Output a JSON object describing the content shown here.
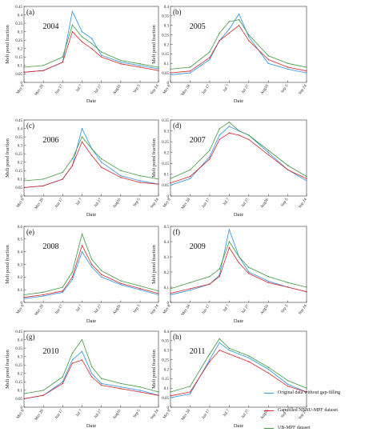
{
  "chart_data": [
    {
      "type": "line",
      "panel_label": "(a)",
      "year_label": "2004",
      "xlabel": "Date",
      "ylabel": "Melt pond fraction",
      "x_ticks": [
        "May 8",
        "May 28",
        "Jun 17",
        "Jul 7",
        "Jul 27",
        "Aug16",
        "Sep 5",
        "Sep 24"
      ],
      "ylim": [
        0,
        0.45
      ],
      "y_ticks": [
        "0",
        "0.05",
        "0.1",
        "0.15",
        "0.2",
        "0.25",
        "0.3",
        "0.35",
        "0.4",
        "0.45"
      ],
      "series": [
        {
          "name": "Original data without gap-filling",
          "color": "#3c9be6",
          "x": [
            "May 8",
            "May 28",
            "Jun 17",
            "Jun 27",
            "Jul 7",
            "Jul 17",
            "Jul 27",
            "Aug16",
            "Sep 5",
            "Sep 24"
          ],
          "values": [
            0.06,
            0.07,
            0.12,
            0.42,
            0.3,
            0.26,
            0.16,
            0.12,
            0.1,
            0.08
          ]
        },
        {
          "name": "Gap-filled NENU-MPF dataset",
          "color": "#d8262a",
          "x": [
            "May 8",
            "May 28",
            "Jun 17",
            "Jun 27",
            "Jul 7",
            "Jul 17",
            "Jul 27",
            "Aug16",
            "Sep 5",
            "Sep 24"
          ],
          "values": [
            0.06,
            0.07,
            0.12,
            0.3,
            0.24,
            0.2,
            0.15,
            0.11,
            0.09,
            0.07
          ]
        },
        {
          "name": "UB-MPF dataset",
          "color": "#3f9a3f",
          "x": [
            "May 8",
            "May 28",
            "Jun 17",
            "Jun 27",
            "Jul 7",
            "Jul 17",
            "Jul 27",
            "Aug16",
            "Sep 5",
            "Sep 24"
          ],
          "values": [
            0.09,
            0.1,
            0.15,
            0.34,
            0.27,
            0.23,
            0.18,
            0.13,
            0.11,
            0.09
          ]
        }
      ]
    },
    {
      "type": "line",
      "panel_label": "(b)",
      "year_label": "2005",
      "xlabel": "Date",
      "ylabel": "Melt pond fraction",
      "x_ticks": [
        "May 8",
        "May 28",
        "Jun 17",
        "Jul 7",
        "Jul 27",
        "Aug16",
        "Sep 5",
        "Sep 24"
      ],
      "ylim": [
        0,
        0.4
      ],
      "y_ticks": [
        "0",
        "0.05",
        "0.1",
        "0.15",
        "0.2",
        "0.25",
        "0.3",
        "0.35",
        "0.4"
      ],
      "series": [
        {
          "name": "Original data without gap-filling",
          "color": "#3c9be6",
          "x": [
            "May 8",
            "May 28",
            "Jun 17",
            "Jun 27",
            "Jul 7",
            "Jul 17",
            "Jul 27",
            "Aug16",
            "Sep 5",
            "Sep 24"
          ],
          "values": [
            0.04,
            0.05,
            0.12,
            0.22,
            0.28,
            0.36,
            0.24,
            0.1,
            0.07,
            0.05
          ]
        },
        {
          "name": "Gap-filled NENU-MPF dataset",
          "color": "#d8262a",
          "x": [
            "May 8",
            "May 28",
            "Jun 17",
            "Jun 27",
            "Jul 7",
            "Jul 17",
            "Jul 27",
            "Aug16",
            "Sep 5",
            "Sep 24"
          ],
          "values": [
            0.05,
            0.06,
            0.13,
            0.22,
            0.26,
            0.3,
            0.22,
            0.12,
            0.08,
            0.06
          ]
        },
        {
          "name": "UB-MPF dataset",
          "color": "#3f9a3f",
          "x": [
            "May 8",
            "May 28",
            "Jun 17",
            "Jun 27",
            "Jul 7",
            "Jul 17",
            "Jul 27",
            "Aug16",
            "Sep 5",
            "Sep 24"
          ],
          "values": [
            0.07,
            0.08,
            0.16,
            0.26,
            0.32,
            0.33,
            0.25,
            0.14,
            0.1,
            0.08
          ]
        }
      ]
    },
    {
      "type": "line",
      "panel_label": "(c)",
      "year_label": "2006",
      "xlabel": "Date",
      "ylabel": "Melt pond fraction",
      "x_ticks": [
        "May 8",
        "May 28",
        "Jun 17",
        "Jul 7",
        "Jul 27",
        "Aug16",
        "Sep 5",
        "Sep 24"
      ],
      "ylim": [
        0,
        0.45
      ],
      "y_ticks": [
        "0",
        "0.05",
        "0.1",
        "0.15",
        "0.2",
        "0.25",
        "0.3",
        "0.35",
        "0.4",
        "0.45"
      ],
      "series": [
        {
          "name": "Original data without gap-filling",
          "color": "#3c9be6",
          "x": [
            "May 8",
            "May 28",
            "Jun 17",
            "Jun 27",
            "Jul 7",
            "Jul 17",
            "Jul 27",
            "Aug16",
            "Sep 5",
            "Sep 24"
          ],
          "values": [
            0.05,
            0.06,
            0.1,
            0.18,
            0.4,
            0.28,
            0.2,
            0.12,
            0.09,
            0.07
          ]
        },
        {
          "name": "Gap-filled NENU-MPF dataset",
          "color": "#d8262a",
          "x": [
            "May 8",
            "May 28",
            "Jun 17",
            "Jun 27",
            "Jul 7",
            "Jul 17",
            "Jul 27",
            "Aug16",
            "Sep 5",
            "Sep 24"
          ],
          "values": [
            0.05,
            0.06,
            0.1,
            0.18,
            0.32,
            0.24,
            0.17,
            0.11,
            0.08,
            0.07
          ]
        },
        {
          "name": "UB-MPF dataset",
          "color": "#3f9a3f",
          "x": [
            "May 8",
            "May 28",
            "Jun 17",
            "Jun 27",
            "Jul 7",
            "Jul 17",
            "Jul 27",
            "Aug16",
            "Sep 5",
            "Sep 24"
          ],
          "values": [
            0.09,
            0.1,
            0.14,
            0.22,
            0.35,
            0.28,
            0.22,
            0.15,
            0.12,
            0.1
          ]
        }
      ]
    },
    {
      "type": "line",
      "panel_label": "(d)",
      "year_label": "2007",
      "xlabel": "Date",
      "ylabel": "Melt pond fraction",
      "x_ticks": [
        "May 8",
        "May 28",
        "Jun 17",
        "Jul 7",
        "Jul 27",
        "Aug16",
        "Sep 5",
        "Sep 24"
      ],
      "ylim": [
        0,
        0.35
      ],
      "y_ticks": [
        "0",
        "0.05",
        "0.1",
        "0.15",
        "0.2",
        "0.25",
        "0.3",
        "0.35"
      ],
      "series": [
        {
          "name": "Original data without gap-filling",
          "color": "#3c9be6",
          "x": [
            "May 8",
            "May 28",
            "Jun 17",
            "Jun 27",
            "Jul 7",
            "Jul 17",
            "Jul 27",
            "Aug16",
            "Sep 5",
            "Sep 24"
          ],
          "values": [
            0.05,
            0.08,
            0.18,
            0.28,
            0.32,
            0.3,
            0.28,
            0.2,
            0.12,
            0.07
          ]
        },
        {
          "name": "Gap-filled NENU-MPF dataset",
          "color": "#d8262a",
          "x": [
            "May 8",
            "May 28",
            "Jun 17",
            "Jun 27",
            "Jul 7",
            "Jul 17",
            "Jul 27",
            "Aug16",
            "Sep 5",
            "Sep 24"
          ],
          "values": [
            0.06,
            0.09,
            0.17,
            0.26,
            0.29,
            0.28,
            0.26,
            0.19,
            0.12,
            0.08
          ]
        },
        {
          "name": "UB-MPF dataset",
          "color": "#3f9a3f",
          "x": [
            "May 8",
            "May 28",
            "Jun 17",
            "Jun 27",
            "Jul 7",
            "Jul 17",
            "Jul 27",
            "Aug16",
            "Sep 5",
            "Sep 24"
          ],
          "values": [
            0.08,
            0.12,
            0.21,
            0.31,
            0.34,
            0.3,
            0.28,
            0.21,
            0.14,
            0.09
          ]
        }
      ]
    },
    {
      "type": "line",
      "panel_label": "(e)",
      "year_label": "2008",
      "xlabel": "Date",
      "ylabel": "Melt pond fraction",
      "x_ticks": [
        "May 8",
        "May 28",
        "Jun 17",
        "Jul 7",
        "Jul 27",
        "Aug16",
        "Sep 5",
        "Sep 24"
      ],
      "ylim": [
        0,
        0.6
      ],
      "y_ticks": [
        "0",
        "0.1",
        "0.2",
        "0.3",
        "0.4",
        "0.5",
        "0.6"
      ],
      "series": [
        {
          "name": "Original data without gap-filling",
          "color": "#3c9be6",
          "x": [
            "May 8",
            "May 28",
            "Jun 17",
            "Jun 27",
            "Jul 7",
            "Jul 17",
            "Jul 27",
            "Aug16",
            "Sep 5",
            "Sep 24"
          ],
          "values": [
            0.03,
            0.05,
            0.08,
            0.18,
            0.4,
            0.28,
            0.2,
            0.14,
            0.1,
            0.06
          ]
        },
        {
          "name": "Gap-filled NENU-MPF dataset",
          "color": "#d8262a",
          "x": [
            "May 8",
            "May 28",
            "Jun 17",
            "Jun 27",
            "Jul 7",
            "Jul 17",
            "Jul 27",
            "Aug16",
            "Sep 5",
            "Sep 24"
          ],
          "values": [
            0.04,
            0.06,
            0.09,
            0.2,
            0.45,
            0.3,
            0.22,
            0.15,
            0.11,
            0.07
          ]
        },
        {
          "name": "UB-MPF dataset",
          "color": "#3f9a3f",
          "x": [
            "May 8",
            "May 28",
            "Jun 17",
            "Jun 27",
            "Jul 7",
            "Jul 17",
            "Jul 27",
            "Aug16",
            "Sep 5",
            "Sep 24"
          ],
          "values": [
            0.06,
            0.08,
            0.12,
            0.24,
            0.54,
            0.34,
            0.25,
            0.17,
            0.13,
            0.09
          ]
        }
      ]
    },
    {
      "type": "line",
      "panel_label": "(f)",
      "year_label": "2009",
      "xlabel": "Date",
      "ylabel": "Melt pond fraction",
      "x_ticks": [
        "May 8",
        "May 28",
        "Jun 17",
        "Jul 7",
        "Jul 27",
        "Aug16",
        "Sep 5",
        "Sep 24"
      ],
      "ylim": [
        0,
        0.5
      ],
      "y_ticks": [
        "0",
        "0.1",
        "0.2",
        "0.3",
        "0.4",
        "0.5"
      ],
      "series": [
        {
          "name": "Original data without gap-filling",
          "color": "#3c9be6",
          "x": [
            "May 8",
            "May 28",
            "Jun 17",
            "Jun 27",
            "Jul 7",
            "Jul 17",
            "Jul 27",
            "Aug16",
            "Sep 5",
            "Sep 24"
          ],
          "values": [
            0.05,
            0.08,
            0.12,
            0.18,
            0.48,
            0.3,
            0.2,
            0.14,
            0.1,
            0.07
          ]
        },
        {
          "name": "Gap-filled NENU-MPF dataset",
          "color": "#d8262a",
          "x": [
            "May 8",
            "May 28",
            "Jun 17",
            "Jun 27",
            "Jul 7",
            "Jul 17",
            "Jul 27",
            "Aug16",
            "Sep 5",
            "Sep 24"
          ],
          "values": [
            0.06,
            0.09,
            0.12,
            0.17,
            0.36,
            0.26,
            0.19,
            0.13,
            0.1,
            0.07
          ]
        },
        {
          "name": "UB-MPF dataset",
          "color": "#3f9a3f",
          "x": [
            "May 8",
            "May 28",
            "Jun 17",
            "Jun 27",
            "Jul 7",
            "Jul 17",
            "Jul 27",
            "Aug16",
            "Sep 5",
            "Sep 24"
          ],
          "values": [
            0.09,
            0.13,
            0.17,
            0.22,
            0.4,
            0.3,
            0.23,
            0.17,
            0.13,
            0.1
          ]
        }
      ]
    },
    {
      "type": "line",
      "panel_label": "(g)",
      "year_label": "2010",
      "xlabel": "Date",
      "ylabel": "Melt pond fraction",
      "x_ticks": [
        "May 8",
        "May 28",
        "Jun 17",
        "Jul 7",
        "Jul 27",
        "Aug16",
        "Sep 5",
        "Sep 24"
      ],
      "ylim": [
        0,
        0.45
      ],
      "y_ticks": [
        "0",
        "0.05",
        "0.1",
        "0.15",
        "0.2",
        "0.25",
        "0.3",
        "0.35",
        "0.4",
        "0.45"
      ],
      "series": [
        {
          "name": "Original data without gap-filling",
          "color": "#3c9be6",
          "x": [
            "May 8",
            "May 28",
            "Jun 17",
            "Jun 27",
            "Jul 7",
            "Jul 17",
            "Jul 27",
            "Aug16",
            "Sep 5",
            "Sep 24"
          ],
          "values": [
            0.05,
            0.07,
            0.15,
            0.28,
            0.33,
            0.2,
            0.14,
            0.12,
            0.1,
            0.07
          ]
        },
        {
          "name": "Gap-filled NENU-MPF dataset",
          "color": "#d8262a",
          "x": [
            "May 8",
            "May 28",
            "Jun 17",
            "Jun 27",
            "Jul 7",
            "Jul 17",
            "Jul 27",
            "Aug16",
            "Sep 5",
            "Sep 24"
          ],
          "values": [
            0.05,
            0.07,
            0.14,
            0.26,
            0.28,
            0.18,
            0.13,
            0.11,
            0.09,
            0.07
          ]
        },
        {
          "name": "UB-MPF dataset",
          "color": "#3f9a3f",
          "x": [
            "May 8",
            "May 28",
            "Jun 17",
            "Jun 27",
            "Jul 7",
            "Jul 17",
            "Jul 27",
            "Aug16",
            "Sep 5",
            "Sep 24"
          ],
          "values": [
            0.08,
            0.1,
            0.18,
            0.32,
            0.4,
            0.24,
            0.17,
            0.14,
            0.12,
            0.09
          ]
        }
      ]
    },
    {
      "type": "line",
      "panel_label": "(h)",
      "year_label": "2011",
      "xlabel": "Date",
      "ylabel": "Melt pond fraction",
      "x_ticks": [
        "May 8",
        "May 28",
        "Jun 17",
        "Jul 7",
        "Jul 27",
        "Aug16",
        "Sep 5",
        "Sep 24"
      ],
      "ylim": [
        0,
        0.4
      ],
      "y_ticks": [
        "0",
        "0.05",
        "0.1",
        "0.15",
        "0.2",
        "0.25",
        "0.3",
        "0.35",
        "0.4"
      ],
      "series": [
        {
          "name": "Original data without gap-filling",
          "color": "#3c9be6",
          "x": [
            "May 8",
            "May 28",
            "Jun 17",
            "Jun 27",
            "Jul 7",
            "Jul 17",
            "Jul 27",
            "Aug16",
            "Sep 5",
            "Sep 24"
          ],
          "values": [
            0.05,
            0.07,
            0.25,
            0.34,
            0.3,
            0.28,
            0.26,
            0.2,
            0.12,
            0.08
          ]
        },
        {
          "name": "Gap-filled NENU-MPF dataset",
          "color": "#d8262a",
          "x": [
            "May 8",
            "May 28",
            "Jun 17",
            "Jun 27",
            "Jul 7",
            "Jul 17",
            "Jul 27",
            "Aug16",
            "Sep 5",
            "Sep 24"
          ],
          "values": [
            0.06,
            0.08,
            0.24,
            0.3,
            0.28,
            0.26,
            0.24,
            0.18,
            0.11,
            0.08
          ]
        },
        {
          "name": "UB-MPF dataset",
          "color": "#3f9a3f",
          "x": [
            "May 8",
            "May 28",
            "Jun 17",
            "Jun 27",
            "Jul 7",
            "Jul 17",
            "Jul 27",
            "Aug16",
            "Sep 5",
            "Sep 24"
          ],
          "values": [
            0.08,
            0.11,
            0.28,
            0.36,
            0.31,
            0.29,
            0.27,
            0.21,
            0.14,
            0.1
          ]
        }
      ]
    }
  ],
  "legend": {
    "items": [
      {
        "label": "Original data without gap-filling",
        "color": "#3c9be6"
      },
      {
        "label": "Gap-filled NENU-MPF dataset",
        "color": "#d8262a"
      },
      {
        "label": "UB-MPF dataset",
        "color": "#3f9a3f"
      }
    ]
  }
}
